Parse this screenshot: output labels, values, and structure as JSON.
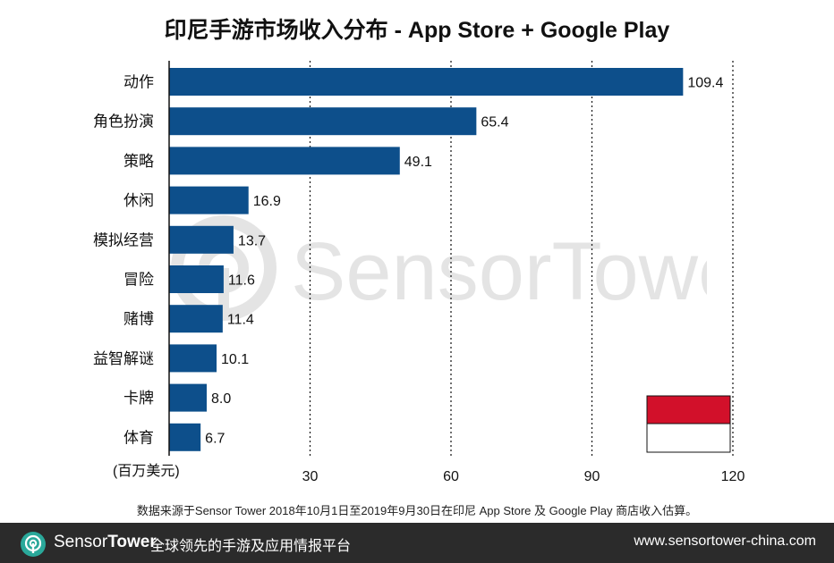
{
  "chart_data": {
    "type": "bar",
    "orientation": "horizontal",
    "title": "印尼手游市场收入分布 - App Store + Google Play",
    "categories": [
      "动作",
      "角色扮演",
      "策略",
      "休闲",
      "模拟经营",
      "冒险",
      "赌博",
      "益智解谜",
      "卡牌",
      "体育"
    ],
    "values": [
      109.4,
      65.4,
      49.1,
      16.9,
      13.7,
      11.6,
      11.4,
      10.1,
      8.0,
      6.7
    ],
    "value_labels": [
      "109.4",
      "65.4",
      "49.1",
      "16.9",
      "13.7",
      "11.6",
      "11.4",
      "10.1",
      "8.0",
      "6.7"
    ],
    "unit_label": "(百万美元)",
    "xlim": [
      0,
      120
    ],
    "xticks": [
      30,
      60,
      90,
      120
    ],
    "grid": "vertical-dotted",
    "bar_color": "#0d4f8b"
  },
  "flag": {
    "name": "Indonesia",
    "top_color": "#d2102a",
    "bottom_color": "#ffffff"
  },
  "watermark": {
    "brand_name": "SensorTower"
  },
  "source_note": "数据来源于Sensor Tower 2018年10月1日至2019年9月30日在印尼 App Store 及 Google Play 商店收入估算。",
  "footer": {
    "brand_prefix": "Sensor",
    "brand_suffix": "Tower",
    "slogan": "全球领先的手游及应用情报平台",
    "url": "www.sensortower-china.com",
    "background_color": "#2b2b2b",
    "logo_color": "#2aa89a"
  }
}
